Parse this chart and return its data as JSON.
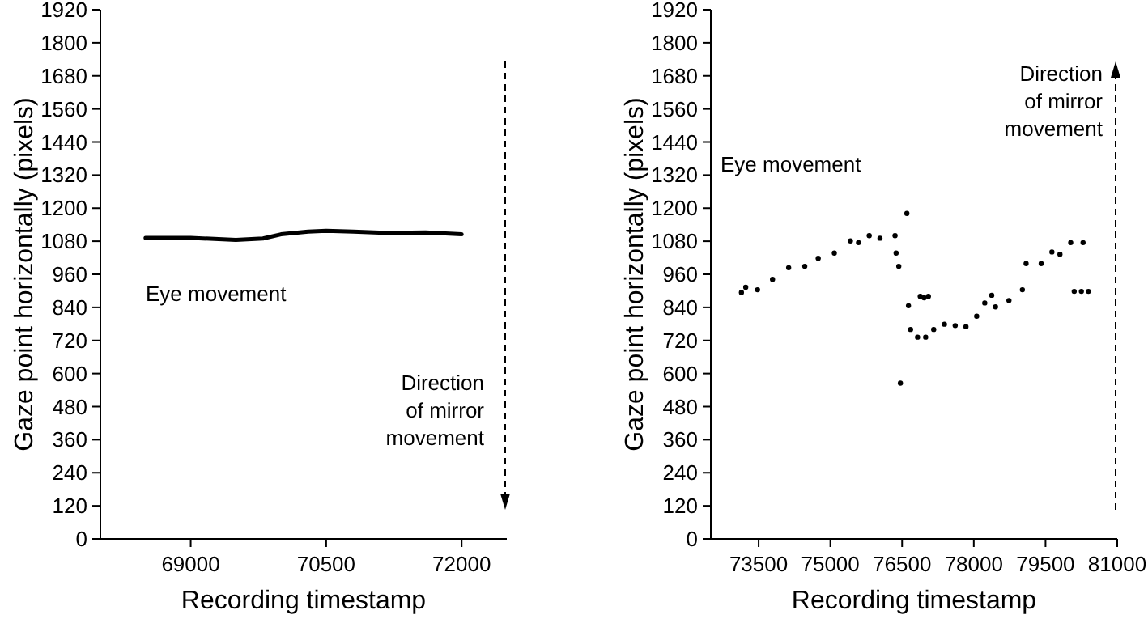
{
  "chart_data": [
    {
      "type": "line",
      "xlabel": "Recording timestamp",
      "ylabel": "Gaze point horizontally (pixels)",
      "xlim": [
        68000,
        72500
      ],
      "xticks": [
        69000,
        70500,
        72000
      ],
      "ylim": [
        0,
        1920
      ],
      "yticks": [
        0,
        120,
        240,
        360,
        480,
        600,
        720,
        840,
        960,
        1080,
        1200,
        1320,
        1440,
        1560,
        1680,
        1800,
        1920
      ],
      "marker": "none",
      "color": "#000000",
      "x": [
        68500,
        69000,
        69500,
        69800,
        70000,
        70300,
        70500,
        70800,
        71200,
        71600,
        72000
      ],
      "values": [
        1092,
        1092,
        1085,
        1090,
        1105,
        1115,
        1118,
        1115,
        1110,
        1112,
        1105
      ],
      "annotations": [
        "Eye movement",
        "Direction of mirror movement"
      ]
    },
    {
      "type": "scatter",
      "xlabel": "Recording timestamp",
      "ylabel": "Gaze point horizontally (pixels)",
      "xlim": [
        72500,
        81000
      ],
      "xticks": [
        73500,
        75000,
        76500,
        78000,
        79500,
        81000
      ],
      "ylim": [
        0,
        1920
      ],
      "yticks": [
        0,
        120,
        240,
        360,
        480,
        600,
        720,
        840,
        960,
        1080,
        1200,
        1320,
        1440,
        1560,
        1680,
        1800,
        1920
      ],
      "marker": "circle",
      "color": "#000000",
      "x": [
        73140,
        73230,
        73477,
        73791,
        74128,
        74465,
        74746,
        75083,
        75420,
        75589,
        75813,
        76038,
        76353,
        76375,
        76431,
        76465,
        76600,
        76634,
        76678,
        76824,
        76880,
        76960,
        77050,
        76993,
        77161,
        77386,
        77611,
        77836,
        78060,
        78229,
        78375,
        78454,
        78735,
        79016,
        79094,
        79409,
        79634,
        79802,
        80027,
        80285,
        80100,
        80250,
        80397
      ],
      "values": [
        894,
        913,
        904,
        942,
        984,
        989,
        1018,
        1037,
        1081,
        1075,
        1100,
        1091,
        1100,
        1037,
        989,
        565,
        1181,
        846,
        760,
        732,
        880,
        875,
        880,
        732,
        760,
        779,
        774,
        770,
        808,
        856,
        884,
        842,
        865,
        904,
        999,
        999,
        1041,
        1033,
        1075,
        1075,
        898,
        898,
        898
      ],
      "annotations": [
        "Eye movement",
        "Direction of mirror movement"
      ]
    }
  ]
}
